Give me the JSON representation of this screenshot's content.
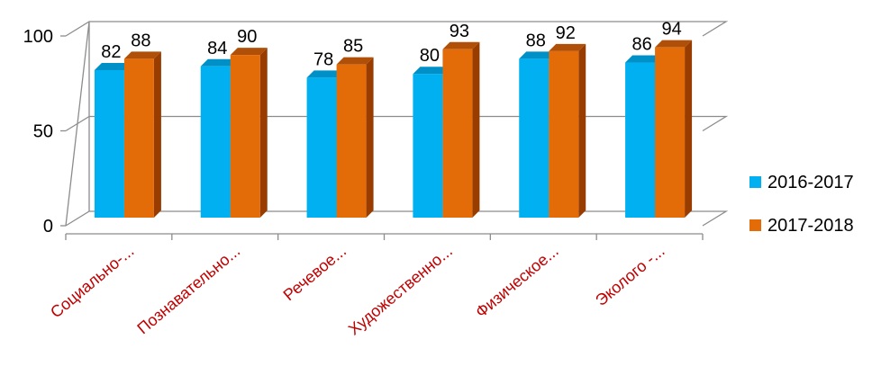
{
  "chart_data": {
    "type": "bar",
    "title": "",
    "xlabel": "",
    "ylabel": "",
    "categories": [
      "Социально-...",
      "Познавательно...",
      "Речевое...",
      "Художественно...",
      "Физическое...",
      "Эколого -..."
    ],
    "series": [
      {
        "name": "2016-2017",
        "values": [
          82,
          84,
          78,
          80,
          88,
          86
        ],
        "color": "#00B0F0",
        "side_color": "#0078A8",
        "top_color": "#0090C8"
      },
      {
        "name": "2017-2018",
        "values": [
          88,
          90,
          85,
          93,
          92,
          94
        ],
        "color": "#E36C09",
        "side_color": "#983C00",
        "top_color": "#B05008"
      }
    ],
    "yticks": [
      0,
      50,
      100
    ],
    "ylim": [
      0,
      100
    ],
    "grid": true,
    "legend_position": "right",
    "category_label_color": "#C00000"
  }
}
